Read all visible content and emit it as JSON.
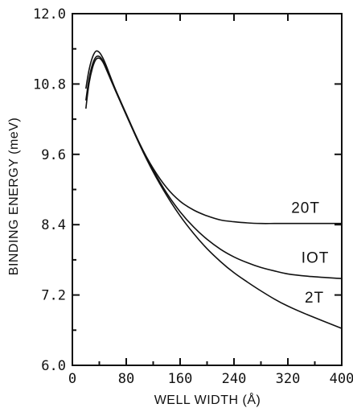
{
  "chart_data": {
    "type": "line",
    "xlabel": "WELL WIDTH (Å)",
    "ylabel": "BINDING ENERGY (meV)",
    "xlim": [
      0,
      400
    ],
    "ylim": [
      6.0,
      12.0
    ],
    "x_ticks": [
      0,
      80,
      160,
      240,
      320,
      400
    ],
    "y_ticks": [
      6.0,
      7.2,
      8.4,
      9.6,
      10.8,
      12.0
    ],
    "x_tick_labels": [
      "0",
      "80",
      "160",
      "240",
      "320",
      "400"
    ],
    "y_tick_labels": [
      "6.0",
      "7.2",
      "8.4",
      "9.6",
      "10.8",
      "12.0"
    ],
    "grid": false,
    "series": [
      {
        "name": "20T",
        "x": [
          20,
          25,
          30,
          35,
          40,
          45,
          50,
          60,
          70,
          80,
          100,
          120,
          140,
          160,
          180,
          200,
          220,
          240,
          260,
          280,
          300,
          320,
          350,
          400
        ],
        "y": [
          10.72,
          11.05,
          11.26,
          11.36,
          11.34,
          11.25,
          11.12,
          10.82,
          10.55,
          10.29,
          9.78,
          9.36,
          9.03,
          8.8,
          8.65,
          8.55,
          8.48,
          8.45,
          8.43,
          8.42,
          8.42,
          8.42,
          8.42,
          8.42
        ]
      },
      {
        "name": "10T",
        "x": [
          20,
          25,
          30,
          35,
          40,
          45,
          50,
          60,
          70,
          80,
          100,
          120,
          140,
          160,
          180,
          200,
          220,
          240,
          260,
          280,
          300,
          320,
          350,
          400
        ],
        "y": [
          10.52,
          10.9,
          11.14,
          11.26,
          11.27,
          11.2,
          11.07,
          10.8,
          10.54,
          10.28,
          9.78,
          9.33,
          8.94,
          8.62,
          8.36,
          8.15,
          7.98,
          7.85,
          7.75,
          7.67,
          7.61,
          7.56,
          7.52,
          7.48
        ]
      },
      {
        "name": "2T",
        "x": [
          20,
          25,
          30,
          35,
          40,
          45,
          50,
          60,
          70,
          80,
          100,
          120,
          140,
          160,
          180,
          200,
          220,
          240,
          260,
          280,
          300,
          320,
          350,
          400
        ],
        "y": [
          10.38,
          10.82,
          11.08,
          11.22,
          11.24,
          11.18,
          11.06,
          10.79,
          10.53,
          10.27,
          9.76,
          9.3,
          8.9,
          8.55,
          8.25,
          7.99,
          7.77,
          7.58,
          7.42,
          7.27,
          7.13,
          7.01,
          6.86,
          6.63
        ]
      }
    ],
    "annotations": [
      {
        "text": "20T",
        "x": 325,
        "y": 8.6
      },
      {
        "text": "IOT",
        "x": 340,
        "y": 7.75
      },
      {
        "text": "2T",
        "x": 345,
        "y": 7.07
      }
    ]
  }
}
